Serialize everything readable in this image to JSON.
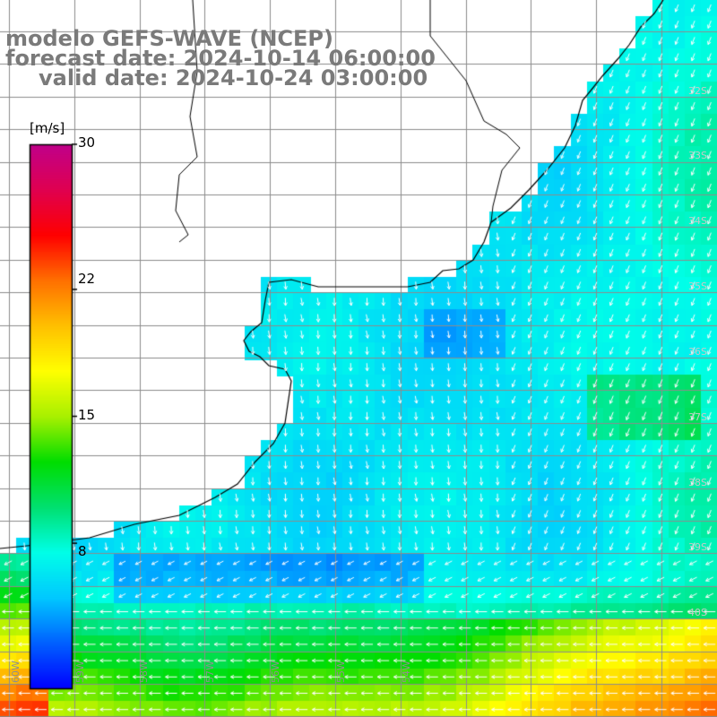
{
  "title": {
    "line1": "modelo GEFS-WAVE (NCEP)",
    "line2": "forecast date: 2024-10-14 06:00:00",
    "line3": "valid date: 2024-10-24 03:00:00"
  },
  "colorbar": {
    "unit": "[m/s]",
    "min": 0,
    "max": 30,
    "tick_labels": [
      "30",
      "22",
      "15",
      "8"
    ],
    "tick_values": [
      30,
      22,
      15,
      8
    ],
    "colors": [
      "#0000ff",
      "#0060ff",
      "#00c8ff",
      "#00ffe8",
      "#00e070",
      "#00dd00",
      "#a8f000",
      "#ffff00",
      "#ffc000",
      "#ff7000",
      "#ff0000",
      "#e00050",
      "#c0008a"
    ]
  },
  "map": {
    "variable": "wind speed and direction",
    "lat_labels": [
      "32S",
      "33S",
      "34S",
      "35S",
      "36S",
      "37S",
      "38S",
      "39S",
      "40S"
    ],
    "lat_values": [
      -32,
      -33,
      -34,
      -35,
      -36,
      -37,
      -38,
      -39,
      -40
    ],
    "lon_labels": [
      "60W",
      "59W",
      "58W",
      "57W",
      "56W",
      "55W",
      "54W"
    ],
    "lon_values": [
      -60,
      -59,
      -58,
      -57,
      -56,
      -55,
      -54
    ],
    "colors": {
      "land": "#ffffff",
      "grid": "#8c8c8c",
      "coast": "#000000",
      "arrow": "#ffffff"
    }
  }
}
